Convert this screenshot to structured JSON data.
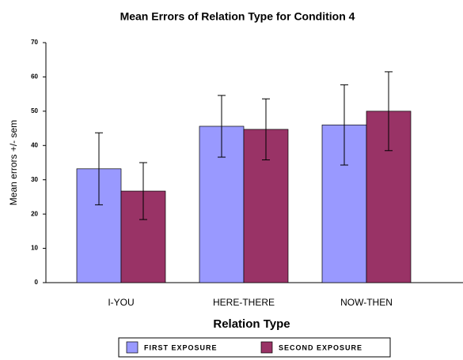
{
  "chart_data": {
    "type": "bar",
    "title": "Mean Errors of Relation Type for Condition 4",
    "x_label": "Relation Type",
    "y_label": "Mean errors +/- sem",
    "categories": [
      "I-YOU",
      "HERE-THERE",
      "NOW-THEN"
    ],
    "series": [
      {
        "name": "FIRST EXPOSURE",
        "color": "#9999ff",
        "values": [
          33.2,
          45.6,
          46.0
        ],
        "errors": [
          10.5,
          9.0,
          11.7
        ]
      },
      {
        "name": "SECOND EXPOSURE",
        "color": "#993366",
        "values": [
          26.7,
          44.7,
          50.0
        ],
        "errors": [
          8.3,
          8.9,
          11.5
        ]
      }
    ],
    "ylim": [
      0,
      70
    ],
    "yticks": [
      0,
      10,
      20,
      30,
      40,
      50,
      60,
      70
    ],
    "grid": false,
    "legend": "bottom"
  }
}
